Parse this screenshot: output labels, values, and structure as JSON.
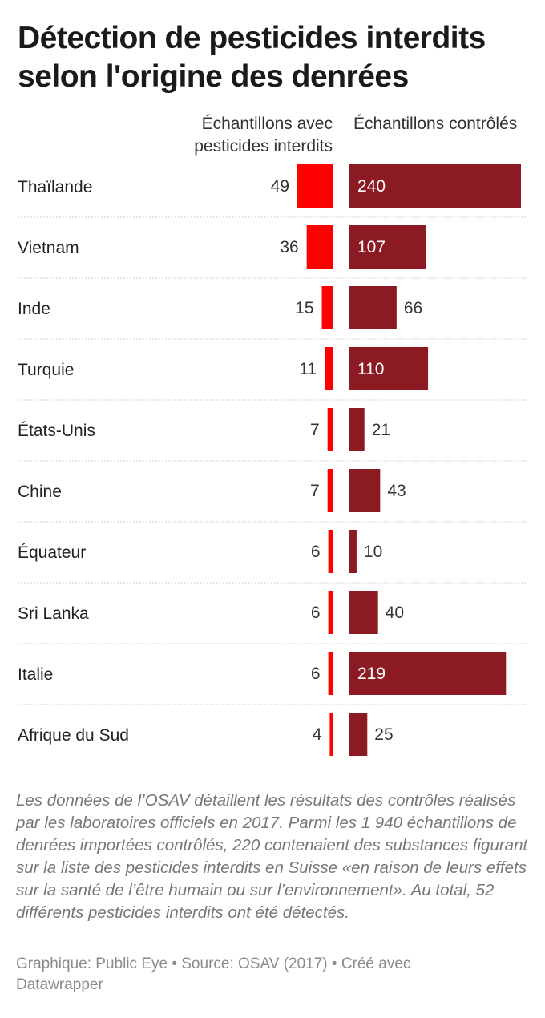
{
  "title": "Détection de pesticides interdits selon l'origine des denrées",
  "column_headers": {
    "left": "Échantillons avec pesticides interdits",
    "right": "Échantillons contrôlés"
  },
  "colors": {
    "left_bar": "#ff0000",
    "right_bar": "#8b1a22",
    "divider": "#cccccc"
  },
  "chart_data": {
    "type": "bar",
    "categories": [
      "Thaïlande",
      "Vietnam",
      "Inde",
      "Turquie",
      "États-Unis",
      "Chine",
      "Équateur",
      "Sri Lanka",
      "Italie",
      "Afrique du Sud"
    ],
    "series": [
      {
        "values": [
          49,
          36,
          15,
          11,
          7,
          7,
          6,
          6,
          6,
          4
        ]
      },
      {
        "values": [
          240,
          107,
          66,
          110,
          21,
          43,
          10,
          40,
          219,
          25
        ]
      }
    ],
    "title": "Détection de pesticides interdits selon l'origine des denrées",
    "xlabel": "",
    "ylabel": "",
    "orientation": "horizontal",
    "legend": "none",
    "grid": false
  },
  "notes": "Les données de l’OSAV détaillent les résultats des contrôles réalisés par les laboratoires officiels en 2017. Parmi les 1 940 échantillons de denrées importées contrôlés, 220 contenaient des substances figurant sur la liste des pesticides interdits en Suisse «en raison de leurs effets sur la santé de l’être humain ou sur l’environnement». Au total, 52 différents pesticides interdits ont été détectés.",
  "source": "Graphique: Public Eye • Source: OSAV (2017) • Créé avec Datawrapper"
}
